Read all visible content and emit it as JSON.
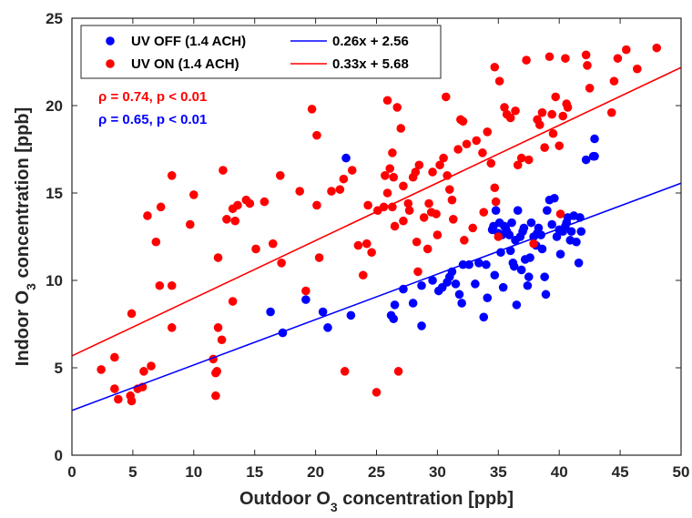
{
  "chart_data": {
    "type": "scatter",
    "xlabel": "Outdoor O3 concentration [ppb]",
    "ylabel": "Indoor O3 concentration [ppb]",
    "xlim": [
      0,
      50
    ],
    "ylim": [
      0,
      25
    ],
    "xticks": [
      "0",
      "5",
      "10",
      "15",
      "20",
      "25",
      "30",
      "35",
      "40",
      "45",
      "50"
    ],
    "yticks": [
      "0",
      "5",
      "10",
      "15",
      "20",
      "25"
    ],
    "grid": false,
    "legend_position": "top-left",
    "series": [
      {
        "name": "UV OFF (1.4 ACH)",
        "color": "#0000ff",
        "points": [
          [
            16.3,
            8.2
          ],
          [
            17.3,
            7.0
          ],
          [
            19.2,
            8.9
          ],
          [
            20.6,
            8.2
          ],
          [
            21.0,
            7.3
          ],
          [
            22.5,
            17.0
          ],
          [
            22.9,
            8.0
          ],
          [
            26.2,
            8.0
          ],
          [
            26.4,
            7.8
          ],
          [
            26.5,
            8.6
          ],
          [
            27.2,
            9.5
          ],
          [
            28.0,
            8.7
          ],
          [
            28.7,
            7.4
          ],
          [
            28.7,
            9.7
          ],
          [
            29.6,
            10.0
          ],
          [
            30.1,
            9.4
          ],
          [
            30.4,
            9.6
          ],
          [
            30.8,
            9.9
          ],
          [
            31.0,
            10.2
          ],
          [
            31.2,
            10.5
          ],
          [
            31.5,
            9.8
          ],
          [
            31.8,
            9.2
          ],
          [
            32.0,
            8.7
          ],
          [
            32.1,
            10.9
          ],
          [
            32.6,
            10.9
          ],
          [
            33.1,
            9.8
          ],
          [
            33.4,
            11.0
          ],
          [
            33.8,
            7.9
          ],
          [
            34.0,
            10.9
          ],
          [
            34.1,
            9.0
          ],
          [
            34.5,
            12.9
          ],
          [
            34.6,
            13.1
          ],
          [
            34.7,
            10.3
          ],
          [
            34.8,
            14.0
          ],
          [
            35.0,
            12.7
          ],
          [
            35.1,
            13.3
          ],
          [
            35.2,
            11.6
          ],
          [
            35.3,
            12.6
          ],
          [
            35.4,
            9.6
          ],
          [
            35.5,
            13.1
          ],
          [
            35.6,
            13.0
          ],
          [
            35.7,
            12.8
          ],
          [
            35.9,
            12.6
          ],
          [
            36.0,
            11.7
          ],
          [
            36.1,
            13.3
          ],
          [
            36.2,
            11.0
          ],
          [
            36.3,
            10.8
          ],
          [
            36.4,
            12.3
          ],
          [
            36.5,
            8.6
          ],
          [
            36.6,
            14.0
          ],
          [
            36.8,
            12.5
          ],
          [
            36.9,
            10.6
          ],
          [
            37.0,
            12.8
          ],
          [
            37.1,
            13.0
          ],
          [
            37.2,
            11.2
          ],
          [
            37.4,
            9.7
          ],
          [
            37.5,
            10.2
          ],
          [
            37.6,
            11.3
          ],
          [
            37.7,
            13.3
          ],
          [
            37.9,
            12.5
          ],
          [
            38.1,
            12.0
          ],
          [
            38.2,
            12.7
          ],
          [
            38.3,
            13.0
          ],
          [
            38.5,
            12.6
          ],
          [
            38.6,
            11.8
          ],
          [
            38.8,
            10.2
          ],
          [
            38.9,
            9.2
          ],
          [
            39.0,
            14.0
          ],
          [
            39.2,
            14.6
          ],
          [
            39.4,
            13.2
          ],
          [
            39.6,
            14.7
          ],
          [
            39.8,
            12.5
          ],
          [
            40.0,
            12.9
          ],
          [
            40.1,
            11.5
          ],
          [
            40.3,
            12.8
          ],
          [
            40.5,
            13.1
          ],
          [
            40.6,
            13.3
          ],
          [
            40.7,
            13.6
          ],
          [
            40.9,
            12.3
          ],
          [
            41.0,
            12.8
          ],
          [
            41.2,
            13.7
          ],
          [
            41.4,
            12.2
          ],
          [
            41.6,
            11.0
          ],
          [
            41.7,
            13.6
          ],
          [
            41.8,
            12.8
          ],
          [
            42.2,
            16.9
          ],
          [
            42.8,
            17.1
          ],
          [
            42.9,
            18.1
          ],
          [
            42.9,
            17.1
          ]
        ]
      },
      {
        "name": "UV ON (1.4 ACH)",
        "color": "#ff0000",
        "points": [
          [
            2.4,
            4.9
          ],
          [
            3.5,
            3.8
          ],
          [
            3.5,
            5.6
          ],
          [
            3.8,
            3.2
          ],
          [
            4.8,
            3.4
          ],
          [
            4.9,
            3.1
          ],
          [
            4.9,
            8.1
          ],
          [
            5.4,
            3.8
          ],
          [
            5.8,
            3.9
          ],
          [
            5.9,
            4.8
          ],
          [
            6.2,
            13.7
          ],
          [
            6.5,
            5.1
          ],
          [
            6.9,
            12.2
          ],
          [
            7.2,
            9.7
          ],
          [
            7.3,
            14.2
          ],
          [
            8.2,
            16.0
          ],
          [
            8.2,
            9.7
          ],
          [
            8.2,
            7.3
          ],
          [
            9.7,
            13.2
          ],
          [
            10.0,
            14.9
          ],
          [
            11.6,
            5.5
          ],
          [
            11.8,
            3.4
          ],
          [
            11.8,
            4.7
          ],
          [
            11.9,
            4.8
          ],
          [
            12.0,
            7.3
          ],
          [
            12.0,
            11.3
          ],
          [
            12.3,
            6.6
          ],
          [
            12.4,
            16.3
          ],
          [
            12.7,
            13.5
          ],
          [
            13.2,
            14.1
          ],
          [
            13.2,
            8.8
          ],
          [
            13.4,
            13.4
          ],
          [
            13.6,
            14.3
          ],
          [
            14.3,
            14.6
          ],
          [
            14.6,
            14.4
          ],
          [
            15.1,
            11.8
          ],
          [
            15.8,
            14.5
          ],
          [
            16.5,
            12.1
          ],
          [
            17.1,
            16.0
          ],
          [
            17.2,
            11.0
          ],
          [
            18.7,
            15.1
          ],
          [
            19.2,
            9.4
          ],
          [
            19.7,
            19.8
          ],
          [
            20.1,
            18.3
          ],
          [
            20.1,
            14.3
          ],
          [
            20.3,
            11.3
          ],
          [
            21.3,
            15.1
          ],
          [
            22.0,
            15.2
          ],
          [
            22.3,
            15.8
          ],
          [
            22.4,
            4.8
          ],
          [
            23.0,
            16.3
          ],
          [
            23.5,
            12.0
          ],
          [
            23.9,
            10.3
          ],
          [
            24.2,
            12.1
          ],
          [
            24.3,
            14.3
          ],
          [
            24.6,
            11.6
          ],
          [
            25.0,
            3.6
          ],
          [
            25.1,
            14.0
          ],
          [
            25.6,
            14.2
          ],
          [
            25.7,
            16.0
          ],
          [
            25.9,
            15.0
          ],
          [
            25.9,
            20.3
          ],
          [
            26.1,
            16.4
          ],
          [
            26.3,
            17.3
          ],
          [
            26.3,
            14.2
          ],
          [
            26.4,
            15.9
          ],
          [
            26.5,
            13.1
          ],
          [
            26.7,
            19.9
          ],
          [
            26.8,
            4.8
          ],
          [
            27.0,
            18.7
          ],
          [
            27.2,
            13.4
          ],
          [
            27.2,
            15.4
          ],
          [
            27.6,
            14.4
          ],
          [
            27.7,
            14.0
          ],
          [
            28.0,
            15.9
          ],
          [
            28.2,
            16.2
          ],
          [
            28.3,
            12.2
          ],
          [
            28.4,
            10.5
          ],
          [
            28.5,
            16.6
          ],
          [
            28.9,
            13.6
          ],
          [
            29.2,
            11.8
          ],
          [
            29.3,
            14.4
          ],
          [
            29.5,
            13.9
          ],
          [
            29.6,
            16.2
          ],
          [
            29.9,
            13.8
          ],
          [
            30.0,
            12.6
          ],
          [
            30.2,
            16.6
          ],
          [
            30.5,
            17.0
          ],
          [
            30.7,
            20.5
          ],
          [
            30.8,
            16.0
          ],
          [
            31.0,
            15.2
          ],
          [
            31.2,
            14.6
          ],
          [
            31.3,
            13.5
          ],
          [
            31.7,
            17.5
          ],
          [
            31.9,
            19.2
          ],
          [
            32.1,
            19.1
          ],
          [
            32.2,
            12.3
          ],
          [
            32.4,
            17.8
          ],
          [
            32.9,
            13.0
          ],
          [
            33.2,
            18.0
          ],
          [
            33.7,
            17.3
          ],
          [
            33.8,
            13.9
          ],
          [
            34.1,
            18.5
          ],
          [
            34.4,
            16.7
          ],
          [
            34.7,
            22.2
          ],
          [
            34.7,
            15.3
          ],
          [
            34.8,
            14.5
          ],
          [
            35.0,
            12.5
          ],
          [
            35.1,
            21.4
          ],
          [
            35.5,
            19.9
          ],
          [
            35.7,
            19.5
          ],
          [
            36.0,
            19.3
          ],
          [
            36.4,
            19.7
          ],
          [
            36.6,
            16.6
          ],
          [
            36.9,
            17.0
          ],
          [
            37.3,
            22.6
          ],
          [
            37.5,
            16.9
          ],
          [
            37.9,
            12.1
          ],
          [
            38.2,
            19.2
          ],
          [
            38.4,
            18.9
          ],
          [
            38.6,
            19.6
          ],
          [
            38.8,
            17.6
          ],
          [
            39.2,
            22.8
          ],
          [
            39.4,
            19.5
          ],
          [
            39.5,
            18.4
          ],
          [
            39.7,
            20.5
          ],
          [
            40.0,
            17.7
          ],
          [
            40.1,
            13.8
          ],
          [
            40.3,
            19.4
          ],
          [
            40.5,
            22.7
          ],
          [
            40.6,
            20.1
          ],
          [
            40.7,
            19.9
          ],
          [
            42.2,
            22.9
          ],
          [
            42.3,
            22.3
          ],
          [
            42.5,
            21.0
          ],
          [
            44.3,
            19.6
          ],
          [
            44.5,
            21.4
          ],
          [
            44.8,
            22.7
          ],
          [
            45.5,
            23.2
          ],
          [
            46.4,
            22.1
          ],
          [
            48.0,
            23.3
          ]
        ]
      }
    ],
    "fits": [
      {
        "label": "0.26x + 2.56",
        "slope": 0.26,
        "intercept": 2.56,
        "color": "#0000ff"
      },
      {
        "label": "0.33x + 5.68",
        "slope": 0.33,
        "intercept": 5.68,
        "color": "#ff0000"
      }
    ],
    "annotations": [
      {
        "text": "ρ = 0.74, p < 0.01",
        "color": "#ff0000"
      },
      {
        "text": "ρ = 0.65, p < 0.01",
        "color": "#0000ff"
      }
    ]
  }
}
